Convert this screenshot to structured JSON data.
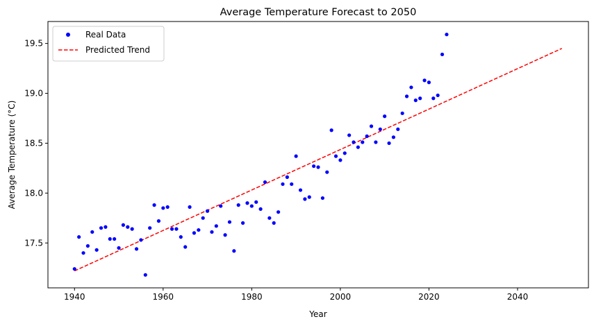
{
  "chart_data": {
    "type": "scatter",
    "title": "Average Temperature Forecast to 2050",
    "xlabel": "Year",
    "ylabel": "Average Temperature (°C)",
    "xlim": [
      1934,
      2056
    ],
    "ylim": [
      17.05,
      19.72
    ],
    "xticks": [
      1940,
      1960,
      1980,
      2000,
      2020,
      2040
    ],
    "yticks": [
      17.5,
      18.0,
      18.5,
      19.0,
      19.5
    ],
    "xtick_labels": [
      "1940",
      "1960",
      "1980",
      "2000",
      "2020",
      "2040"
    ],
    "ytick_labels": [
      "17.5",
      "18.0",
      "18.5",
      "19.0",
      "19.5"
    ],
    "grid": false,
    "legend_position": "top-left",
    "series": [
      {
        "name": "Real Data",
        "kind": "scatter",
        "color": "#0000ff",
        "x": [
          1940,
          1941,
          1942,
          1943,
          1944,
          1945,
          1946,
          1947,
          1948,
          1949,
          1950,
          1951,
          1952,
          1953,
          1954,
          1955,
          1956,
          1957,
          1958,
          1959,
          1960,
          1961,
          1962,
          1963,
          1964,
          1965,
          1966,
          1967,
          1968,
          1969,
          1970,
          1971,
          1972,
          1973,
          1974,
          1975,
          1976,
          1977,
          1978,
          1979,
          1980,
          1981,
          1982,
          1983,
          1984,
          1985,
          1986,
          1987,
          1988,
          1989,
          1990,
          1991,
          1992,
          1993,
          1994,
          1995,
          1996,
          1997,
          1998,
          1999,
          2000,
          2001,
          2002,
          2003,
          2004,
          2005,
          2006,
          2007,
          2008,
          2009,
          2010,
          2011,
          2012,
          2013,
          2014,
          2015,
          2016,
          2017,
          2018,
          2019,
          2020,
          2021,
          2022,
          2023,
          2024
        ],
        "y": [
          17.24,
          17.56,
          17.4,
          17.47,
          17.61,
          17.43,
          17.65,
          17.66,
          17.54,
          17.54,
          17.45,
          17.68,
          17.66,
          17.64,
          17.44,
          17.53,
          17.18,
          17.65,
          17.88,
          17.72,
          17.85,
          17.86,
          17.64,
          17.64,
          17.56,
          17.46,
          17.86,
          17.6,
          17.63,
          17.75,
          17.82,
          17.61,
          17.67,
          17.87,
          17.58,
          17.71,
          17.42,
          17.88,
          17.7,
          17.9,
          17.87,
          17.91,
          17.84,
          18.11,
          17.75,
          17.7,
          17.81,
          18.09,
          18.16,
          18.09,
          18.37,
          18.03,
          17.94,
          17.96,
          18.27,
          18.26,
          17.95,
          18.21,
          18.63,
          18.37,
          18.33,
          18.4,
          18.58,
          18.51,
          18.46,
          18.51,
          18.57,
          18.67,
          18.51,
          18.64,
          18.77,
          18.5,
          18.56,
          18.64,
          18.8,
          18.97,
          19.06,
          18.93,
          18.95,
          19.13,
          19.11,
          18.95,
          18.98,
          19.39,
          19.59
        ]
      },
      {
        "name": "Predicted Trend",
        "kind": "line",
        "style": "dashed",
        "color": "#ff0000",
        "x": [
          1940,
          2050
        ],
        "y": [
          17.22,
          19.45
        ]
      }
    ]
  }
}
